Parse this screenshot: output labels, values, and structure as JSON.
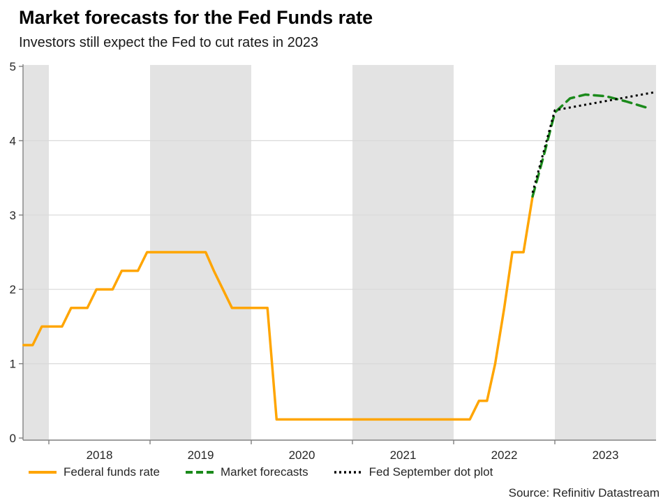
{
  "chart_data": {
    "type": "line",
    "title": "Market forecasts for the Fed Funds rate",
    "subtitle": "Investors still expect the Fed to cut rates in 2023",
    "source": "Source: Refinitiv Datastream",
    "ylim": [
      0,
      5
    ],
    "yticks": [
      0,
      1,
      2,
      3,
      4,
      5
    ],
    "x_range": [
      2017.75,
      2024.0
    ],
    "x_tick_years": [
      2018,
      2019,
      2020,
      2021,
      2022,
      2023
    ],
    "grid": true,
    "legend_position": "bottom",
    "band_color": "#e3e3e3",
    "grid_color": "#d9d9d9",
    "axis_color": "#7f7f7f",
    "text_color": "#262626",
    "shaded_bands": [
      {
        "from": 2017.75,
        "to": 2018.0
      },
      {
        "from": 2019.0,
        "to": 2020.0
      },
      {
        "from": 2021.0,
        "to": 2022.0
      },
      {
        "from": 2023.0,
        "to": 2024.0
      }
    ],
    "series": [
      {
        "name": "Federal funds rate",
        "color": "#FFA500",
        "style": "solid",
        "points": [
          [
            2017.75,
            1.25
          ],
          [
            2017.84,
            1.25
          ],
          [
            2017.93,
            1.5
          ],
          [
            2018.13,
            1.5
          ],
          [
            2018.22,
            1.75
          ],
          [
            2018.38,
            1.75
          ],
          [
            2018.47,
            2.0
          ],
          [
            2018.63,
            2.0
          ],
          [
            2018.72,
            2.25
          ],
          [
            2018.88,
            2.25
          ],
          [
            2018.97,
            2.5
          ],
          [
            2019.55,
            2.5
          ],
          [
            2019.63,
            2.25
          ],
          [
            2019.72,
            2.0
          ],
          [
            2019.81,
            1.75
          ],
          [
            2020.16,
            1.75
          ],
          [
            2020.25,
            0.25
          ],
          [
            2022.16,
            0.25
          ],
          [
            2022.25,
            0.5
          ],
          [
            2022.33,
            0.5
          ],
          [
            2022.41,
            1.0
          ],
          [
            2022.5,
            1.75
          ],
          [
            2022.58,
            2.5
          ],
          [
            2022.69,
            2.5
          ],
          [
            2022.78,
            3.25
          ]
        ]
      },
      {
        "name": "Market forecasts",
        "color": "#1b8a1b",
        "style": "dashed",
        "points": [
          [
            2022.78,
            3.25
          ],
          [
            2022.9,
            3.85
          ],
          [
            2023.0,
            4.38
          ],
          [
            2023.15,
            4.57
          ],
          [
            2023.3,
            4.62
          ],
          [
            2023.5,
            4.6
          ],
          [
            2023.7,
            4.53
          ],
          [
            2023.92,
            4.44
          ]
        ]
      },
      {
        "name": "Fed September dot plot",
        "color": "#000000",
        "style": "dotted",
        "points": [
          [
            2022.78,
            3.3
          ],
          [
            2023.0,
            4.41
          ],
          [
            2023.98,
            4.65
          ]
        ]
      }
    ]
  }
}
